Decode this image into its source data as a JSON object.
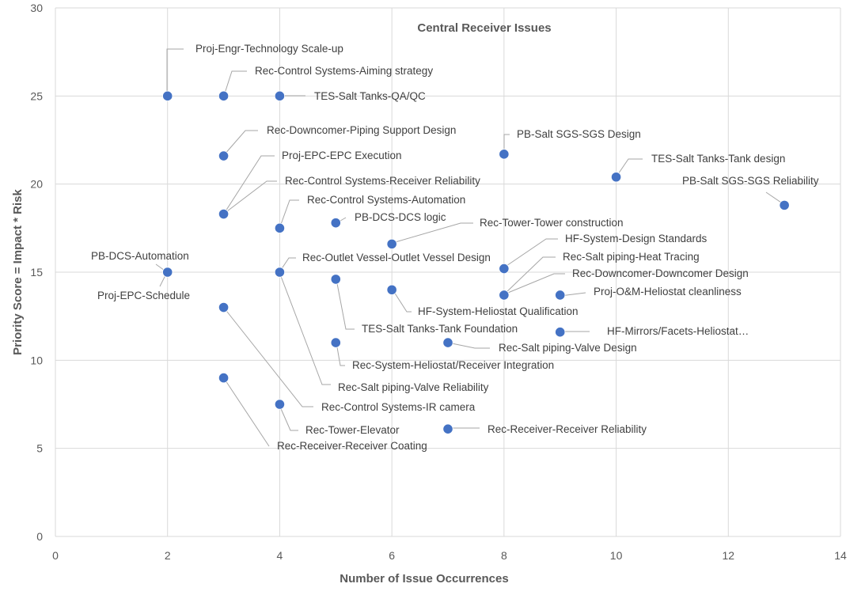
{
  "chart_data": {
    "type": "scatter",
    "title": "Central Receiver Issues",
    "xlabel": "Number of Issue Occurrences",
    "ylabel": "Priority Score = Impact * Risk",
    "xlim": [
      0,
      14
    ],
    "ylim": [
      0,
      30
    ],
    "xticks": [
      0,
      2,
      4,
      6,
      8,
      10,
      12,
      14
    ],
    "yticks": [
      0,
      5,
      10,
      15,
      20,
      25,
      30
    ],
    "grid": true,
    "legend": "none",
    "marker_color": "#4472c4",
    "points": [
      {
        "x": 2,
        "y": 25,
        "label": "Proj-Engr-Technology Scale-up"
      },
      {
        "x": 3,
        "y": 25,
        "label": "Rec-Control Systems-Aiming strategy"
      },
      {
        "x": 4,
        "y": 25,
        "label": "TES-Salt Tanks-QA/QC"
      },
      {
        "x": 3,
        "y": 21.6,
        "label": "Rec-Downcomer-Piping Support Design"
      },
      {
        "x": 3,
        "y": 18.3,
        "label": "Proj-EPC-EPC Execution"
      },
      {
        "x": 3,
        "y": 18.3,
        "label": "Rec-Control Systems-Receiver Reliability"
      },
      {
        "x": 8,
        "y": 21.7,
        "label": "PB-Salt SGS-SGS Design"
      },
      {
        "x": 10,
        "y": 20.4,
        "label": "TES-Salt Tanks-Tank design"
      },
      {
        "x": 13,
        "y": 18.8,
        "label": "PB-Salt SGS-SGS Reliability"
      },
      {
        "x": 4,
        "y": 17.5,
        "label": "Rec-Control Systems-Automation"
      },
      {
        "x": 5,
        "y": 17.8,
        "label": "PB-DCS-DCS logic"
      },
      {
        "x": 6,
        "y": 16.6,
        "label": "Rec-Tower-Tower construction"
      },
      {
        "x": 2,
        "y": 15,
        "label": "PB-DCS-Automation"
      },
      {
        "x": 2,
        "y": 15,
        "label": "Proj-EPC-Schedule"
      },
      {
        "x": 4,
        "y": 15,
        "label": "Rec-Outlet Vessel-Outlet Vessel Design"
      },
      {
        "x": 4,
        "y": 15,
        "label": "Rec-Salt piping-Valve Reliability"
      },
      {
        "x": 8,
        "y": 15.2,
        "label": "HF-System-Design Standards"
      },
      {
        "x": 8,
        "y": 13.7,
        "label": "Rec-Salt piping-Heat Tracing"
      },
      {
        "x": 8,
        "y": 13.7,
        "label": "Rec-Downcomer-Downcomer Design"
      },
      {
        "x": 9,
        "y": 13.7,
        "label": "Proj-O&M-Heliostat cleanliness"
      },
      {
        "x": 5,
        "y": 14.6,
        "label": "TES-Salt Tanks-Tank Foundation"
      },
      {
        "x": 6,
        "y": 14,
        "label": "HF-System-Heliostat Qualification"
      },
      {
        "x": 9,
        "y": 11.6,
        "label": "HF-Mirrors/Facets-Heliostat…"
      },
      {
        "x": 7,
        "y": 11,
        "label": "Rec-Salt piping-Valve Design"
      },
      {
        "x": 5,
        "y": 11,
        "label": "Rec-System-Heliostat/Receiver Integration"
      },
      {
        "x": 3,
        "y": 13,
        "label": "Rec-Control Systems-IR camera"
      },
      {
        "x": 4,
        "y": 7.5,
        "label": "Rec-Tower-Elevator"
      },
      {
        "x": 7,
        "y": 6.1,
        "label": "Rec-Receiver-Receiver Reliability"
      },
      {
        "x": 3,
        "y": 9,
        "label": "Rec-Receiver-Receiver Coating"
      }
    ]
  }
}
